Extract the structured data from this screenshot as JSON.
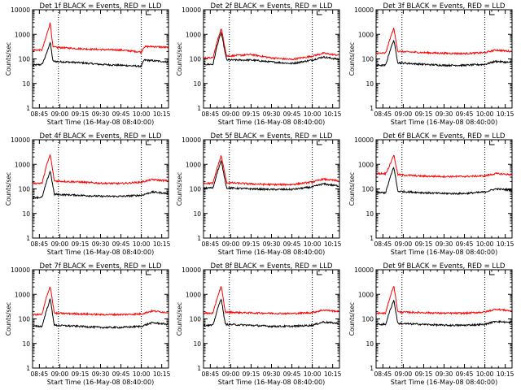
{
  "figure": {
    "background": "#ffffff",
    "axis_color": "#000000",
    "events_color": "#000000",
    "lld_color": "#ff0000"
  },
  "chart_data": [
    {
      "type": "line",
      "title": "Det 1f BLACK = Events, RED = LLD",
      "xlabel": "Start Time (16-May-08 08:40:00)",
      "ylabel": "Counts/sec",
      "y_scale": "log",
      "ylim": [
        1,
        10000
      ],
      "xlim": [
        "08:40",
        "10:20"
      ],
      "x_ticks": [
        "08:45",
        "09:00",
        "09:15",
        "09:30",
        "09:45",
        "10:00",
        "10:15"
      ],
      "y_ticks": [
        "1",
        "10",
        "100",
        "1000",
        "10000"
      ],
      "vlines_dotted": [
        "08:59",
        "10:00"
      ],
      "series": [
        {
          "name": "Events",
          "color": "#000000",
          "x": [
            "08:40",
            "08:47",
            "08:50",
            "08:53",
            "08:55",
            "09:15",
            "09:30",
            "09:45",
            "10:00",
            "10:02",
            "10:08",
            "10:20"
          ],
          "values": [
            55,
            60,
            150,
            480,
            80,
            70,
            60,
            55,
            50,
            90,
            85,
            75
          ]
        },
        {
          "name": "LLD",
          "color": "#ff0000",
          "x": [
            "08:40",
            "08:47",
            "08:50",
            "08:53",
            "08:55",
            "09:15",
            "09:30",
            "09:45",
            "10:00",
            "10:02",
            "10:08",
            "10:20"
          ],
          "values": [
            230,
            230,
            800,
            3000,
            300,
            260,
            240,
            230,
            190,
            310,
            320,
            290
          ]
        }
      ]
    },
    {
      "type": "line",
      "title": "Det 2f BLACK = Events, RED = LLD",
      "xlabel": "Start Time (16-May-08 08:40:00)",
      "ylabel": "Counts/sec",
      "y_scale": "log",
      "ylim": [
        1,
        10000
      ],
      "xlim": [
        "08:40",
        "10:20"
      ],
      "x_ticks": [
        "08:45",
        "09:00",
        "09:15",
        "09:30",
        "09:45",
        "10:00",
        "10:15"
      ],
      "y_ticks": [
        "1",
        "10",
        "100",
        "1000",
        "10000"
      ],
      "vlines_dotted": [
        "08:59",
        "10:00"
      ],
      "series": [
        {
          "name": "Events",
          "color": "#000000",
          "x": [
            "08:40",
            "08:47",
            "08:50",
            "08:53",
            "08:57",
            "09:15",
            "09:30",
            "09:45",
            "10:00",
            "10:08",
            "10:20"
          ],
          "values": [
            60,
            60,
            350,
            1200,
            90,
            90,
            75,
            65,
            90,
            120,
            95
          ]
        },
        {
          "name": "LLD",
          "color": "#ff0000",
          "x": [
            "08:40",
            "08:47",
            "08:50",
            "08:53",
            "08:57",
            "09:15",
            "09:30",
            "09:45",
            "10:00",
            "10:08",
            "10:20"
          ],
          "values": [
            110,
            110,
            500,
            1800,
            130,
            150,
            110,
            95,
            130,
            170,
            140
          ]
        }
      ]
    },
    {
      "type": "line",
      "title": "Det 3f BLACK = Events, RED = LLD",
      "xlabel": "Start Time (16-May-08 08:40:00)",
      "ylabel": "Counts/sec",
      "y_scale": "log",
      "ylim": [
        1,
        10000
      ],
      "xlim": [
        "08:40",
        "10:20"
      ],
      "x_ticks": [
        "08:45",
        "09:00",
        "09:15",
        "09:30",
        "09:45",
        "10:00",
        "10:15"
      ],
      "y_ticks": [
        "1",
        "10",
        "100",
        "1000",
        "10000"
      ],
      "vlines_dotted": [
        "08:59",
        "10:00"
      ],
      "series": [
        {
          "name": "Events",
          "color": "#000000",
          "x": [
            "08:40",
            "08:47",
            "08:50",
            "08:53",
            "08:56",
            "09:15",
            "09:30",
            "09:45",
            "10:00",
            "10:08",
            "10:20"
          ],
          "values": [
            55,
            55,
            200,
            600,
            70,
            60,
            55,
            55,
            60,
            80,
            70
          ]
        },
        {
          "name": "LLD",
          "color": "#ff0000",
          "x": [
            "08:40",
            "08:47",
            "08:50",
            "08:53",
            "08:56",
            "09:15",
            "09:30",
            "09:45",
            "10:00",
            "10:08",
            "10:20"
          ],
          "values": [
            170,
            170,
            600,
            1800,
            200,
            180,
            170,
            165,
            180,
            230,
            200
          ]
        }
      ]
    },
    {
      "type": "line",
      "title": "Det 4f BLACK = Events, RED = LLD",
      "xlabel": "Start Time (16-May-08 08:40:00)",
      "ylabel": "Counts/sec",
      "y_scale": "log",
      "ylim": [
        1,
        10000
      ],
      "xlim": [
        "08:40",
        "10:20"
      ],
      "x_ticks": [
        "08:45",
        "09:00",
        "09:15",
        "09:30",
        "09:45",
        "10:00",
        "10:15"
      ],
      "y_ticks": [
        "1",
        "10",
        "100",
        "1000",
        "10000"
      ],
      "vlines_dotted": [
        "08:59",
        "10:00"
      ],
      "series": [
        {
          "name": "Events",
          "color": "#000000",
          "x": [
            "08:40",
            "08:47",
            "08:50",
            "08:53",
            "08:56",
            "09:15",
            "09:30",
            "09:45",
            "10:00",
            "10:08",
            "10:20"
          ],
          "values": [
            45,
            45,
            170,
            550,
            60,
            55,
            50,
            50,
            55,
            75,
            65
          ]
        },
        {
          "name": "LLD",
          "color": "#ff0000",
          "x": [
            "08:40",
            "08:47",
            "08:50",
            "08:53",
            "08:56",
            "09:15",
            "09:30",
            "09:45",
            "10:00",
            "10:08",
            "10:20"
          ],
          "values": [
            170,
            170,
            800,
            2500,
            210,
            190,
            170,
            165,
            190,
            240,
            210
          ]
        }
      ]
    },
    {
      "type": "line",
      "title": "Det 5f BLACK = Events, RED = LLD",
      "xlabel": "Start Time (16-May-08 08:40:00)",
      "ylabel": "Counts/sec",
      "y_scale": "log",
      "ylim": [
        1,
        10000
      ],
      "xlim": [
        "08:40",
        "10:20"
      ],
      "x_ticks": [
        "08:45",
        "09:00",
        "09:15",
        "09:30",
        "09:45",
        "10:00",
        "10:15"
      ],
      "y_ticks": [
        "1",
        "10",
        "100",
        "1000",
        "10000"
      ],
      "vlines_dotted": [
        "08:59",
        "10:00"
      ],
      "series": [
        {
          "name": "Events",
          "color": "#000000",
          "x": [
            "08:40",
            "08:47",
            "08:50",
            "08:53",
            "08:57",
            "09:15",
            "09:30",
            "09:45",
            "10:00",
            "10:08",
            "10:20"
          ],
          "values": [
            110,
            110,
            450,
            1400,
            110,
            100,
            95,
            95,
            120,
            160,
            130
          ]
        },
        {
          "name": "LLD",
          "color": "#ff0000",
          "x": [
            "08:40",
            "08:47",
            "08:50",
            "08:53",
            "08:57",
            "09:15",
            "09:30",
            "09:45",
            "10:00",
            "10:08",
            "10:20"
          ],
          "values": [
            170,
            170,
            700,
            2300,
            180,
            160,
            150,
            150,
            190,
            250,
            210
          ]
        }
      ]
    },
    {
      "type": "line",
      "title": "Det 6f BLACK = Events, RED = LLD",
      "xlabel": "Start Time (16-May-08 08:40:00)",
      "ylabel": "Counts/sec",
      "y_scale": "log",
      "ylim": [
        1,
        10000
      ],
      "xlim": [
        "08:40",
        "10:20"
      ],
      "x_ticks": [
        "08:45",
        "09:00",
        "09:15",
        "09:30",
        "09:45",
        "10:00",
        "10:15"
      ],
      "y_ticks": [
        "1",
        "10",
        "100",
        "1000",
        "10000"
      ],
      "vlines_dotted": [
        "08:59",
        "10:00"
      ],
      "series": [
        {
          "name": "Events",
          "color": "#000000",
          "x": [
            "08:40",
            "08:47",
            "08:50",
            "08:53",
            "08:56",
            "09:15",
            "09:30",
            "09:45",
            "10:00",
            "10:08",
            "10:20"
          ],
          "values": [
            70,
            70,
            250,
            800,
            80,
            70,
            65,
            65,
            75,
            100,
            90
          ]
        },
        {
          "name": "LLD",
          "color": "#ff0000",
          "x": [
            "08:40",
            "08:47",
            "08:50",
            "08:53",
            "08:56",
            "09:15",
            "09:30",
            "09:45",
            "10:00",
            "10:08",
            "10:20"
          ],
          "values": [
            420,
            420,
            900,
            2500,
            380,
            330,
            320,
            320,
            340,
            420,
            380
          ]
        }
      ]
    },
    {
      "type": "line",
      "title": "Det 7f BLACK = Events, RED = LLD",
      "xlabel": "Start Time (16-May-08 08:40:00)",
      "ylabel": "Counts/sec",
      "y_scale": "log",
      "ylim": [
        1,
        10000
      ],
      "xlim": [
        "08:40",
        "10:20"
      ],
      "x_ticks": [
        "08:45",
        "09:00",
        "09:15",
        "09:30",
        "09:45",
        "10:00",
        "10:15"
      ],
      "y_ticks": [
        "1",
        "10",
        "100",
        "1000",
        "10000"
      ],
      "vlines_dotted": [
        "08:59",
        "10:00"
      ],
      "series": [
        {
          "name": "Events",
          "color": "#000000",
          "x": [
            "08:40",
            "08:47",
            "08:50",
            "08:53",
            "08:56",
            "09:15",
            "09:30",
            "09:45",
            "10:00",
            "10:08",
            "10:20"
          ],
          "values": [
            50,
            50,
            200,
            650,
            55,
            50,
            45,
            45,
            50,
            70,
            60
          ]
        },
        {
          "name": "LLD",
          "color": "#ff0000",
          "x": [
            "08:40",
            "08:47",
            "08:50",
            "08:53",
            "08:56",
            "09:15",
            "09:30",
            "09:45",
            "10:00",
            "10:08",
            "10:20"
          ],
          "values": [
            150,
            150,
            700,
            2200,
            170,
            160,
            150,
            150,
            160,
            210,
            180
          ]
        }
      ]
    },
    {
      "type": "line",
      "title": "Det 8f BLACK = Events, RED = LLD",
      "xlabel": "Start Time (16-May-08 08:40:00)",
      "ylabel": "Counts/sec",
      "y_scale": "log",
      "ylim": [
        1,
        10000
      ],
      "xlim": [
        "08:40",
        "10:20"
      ],
      "x_ticks": [
        "08:45",
        "09:00",
        "09:15",
        "09:30",
        "09:45",
        "10:00",
        "10:15"
      ],
      "y_ticks": [
        "1",
        "10",
        "100",
        "1000",
        "10000"
      ],
      "vlines_dotted": [
        "08:59",
        "10:00"
      ],
      "series": [
        {
          "name": "Events",
          "color": "#000000",
          "x": [
            "08:40",
            "08:47",
            "08:50",
            "08:53",
            "08:56",
            "09:15",
            "09:30",
            "09:45",
            "10:00",
            "10:08",
            "10:20"
          ],
          "values": [
            55,
            55,
            220,
            700,
            60,
            55,
            50,
            50,
            55,
            75,
            65
          ]
        },
        {
          "name": "LLD",
          "color": "#ff0000",
          "x": [
            "08:40",
            "08:47",
            "08:50",
            "08:53",
            "08:56",
            "09:15",
            "09:30",
            "09:45",
            "10:00",
            "10:08",
            "10:20"
          ],
          "values": [
            170,
            170,
            700,
            2200,
            190,
            175,
            170,
            165,
            180,
            230,
            200
          ]
        }
      ]
    },
    {
      "type": "line",
      "title": "Det 9f BLACK = Events, RED = LLD",
      "xlabel": "Start Time (16-May-08 08:40:00)",
      "ylabel": "Counts/sec",
      "y_scale": "log",
      "ylim": [
        1,
        10000
      ],
      "xlim": [
        "08:40",
        "10:20"
      ],
      "x_ticks": [
        "08:45",
        "09:00",
        "09:15",
        "09:30",
        "09:45",
        "10:00",
        "10:15"
      ],
      "y_ticks": [
        "1",
        "10",
        "100",
        "1000",
        "10000"
      ],
      "vlines_dotted": [
        "08:59",
        "10:00"
      ],
      "series": [
        {
          "name": "Events",
          "color": "#000000",
          "x": [
            "08:40",
            "08:47",
            "08:50",
            "08:53",
            "08:56",
            "09:15",
            "09:30",
            "09:45",
            "10:00",
            "10:08",
            "10:20"
          ],
          "values": [
            60,
            60,
            200,
            600,
            65,
            60,
            55,
            55,
            60,
            80,
            70
          ]
        },
        {
          "name": "LLD",
          "color": "#ff0000",
          "x": [
            "08:40",
            "08:47",
            "08:50",
            "08:53",
            "08:56",
            "09:15",
            "09:30",
            "09:45",
            "10:00",
            "10:08",
            "10:20"
          ],
          "values": [
            170,
            170,
            700,
            2300,
            190,
            180,
            170,
            170,
            190,
            250,
            210
          ]
        }
      ]
    }
  ]
}
